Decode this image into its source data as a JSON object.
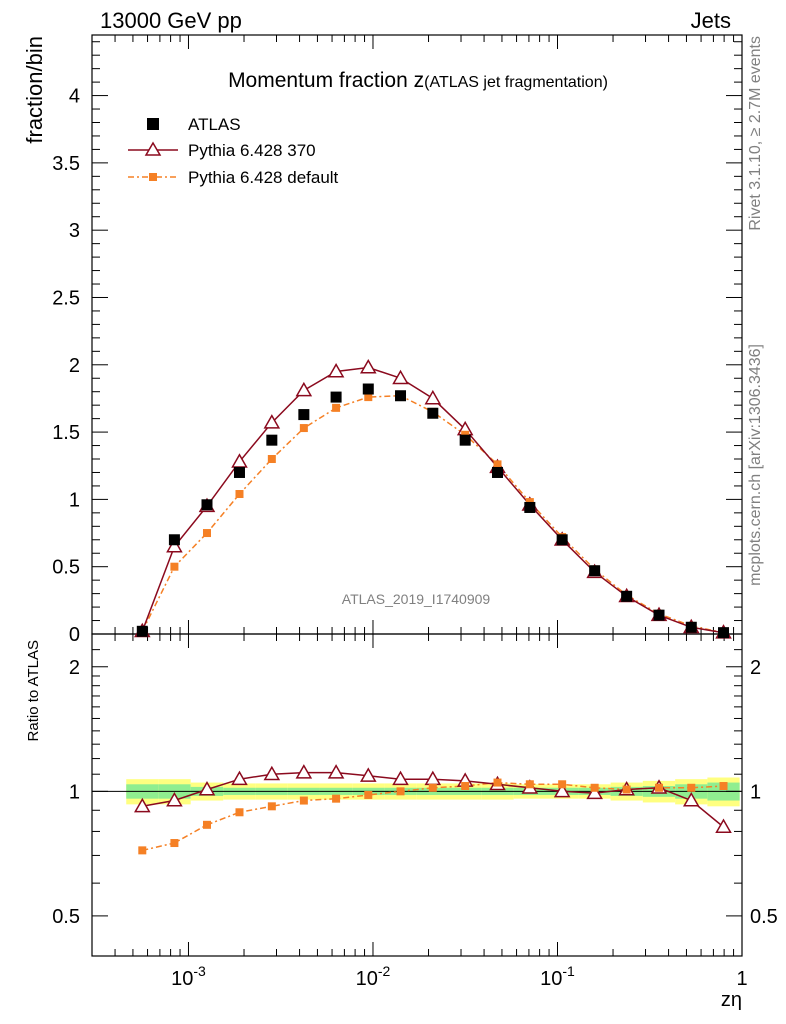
{
  "header": {
    "energy_label": "13000 GeV pp",
    "category_label": "Jets"
  },
  "side": {
    "rivet_label": "Rivet 3.1.10, ≥ 2.7M events",
    "source_label": "mcplots.cern.ch [arXiv:1306.3436]"
  },
  "chart_data": {
    "type": "line",
    "title": "Momentum fraction z",
    "title_suffix": "(ATLAS jet fragmentation)",
    "watermark": "ATLAS_2019_I1740909",
    "xlabel": "zη",
    "ylabel": "fraction/bin",
    "ratio_ylabel": "Ratio to ATLAS",
    "xscale": "log",
    "xlim": [
      0.0003,
      1
    ],
    "ylim": [
      0,
      4.45
    ],
    "ratio_ylim": [
      0.4,
      2.4
    ],
    "legend_position": "top-left",
    "x_tick_labels": [
      "10^-3",
      "10^-2",
      "10^-1",
      "1"
    ],
    "y_tick_labels": [
      "0",
      "0.5",
      "1",
      "1.5",
      "2",
      "2.5",
      "3",
      "3.5",
      "4"
    ],
    "ratio_tick_labels": [
      "0.5",
      "1",
      "2"
    ],
    "x": [
      0.000562,
      0.000839,
      0.00126,
      0.00189,
      0.00283,
      0.00422,
      0.00631,
      0.00943,
      0.0141,
      0.0211,
      0.0316,
      0.0473,
      0.0708,
      0.106,
      0.159,
      0.237,
      0.355,
      0.531,
      0.794
    ],
    "series": [
      {
        "name": "ATLAS",
        "style": "data",
        "color": "#000000",
        "values": [
          0.02,
          0.7,
          0.96,
          1.2,
          1.44,
          1.63,
          1.76,
          1.82,
          1.77,
          1.64,
          1.44,
          1.2,
          0.94,
          0.7,
          0.47,
          0.28,
          0.14,
          0.05,
          0.01
        ]
      },
      {
        "name": "Pythia 6.428 370",
        "style": "triangle-line",
        "color": "#8b0a1e",
        "values": [
          0.02,
          0.65,
          0.95,
          1.28,
          1.57,
          1.81,
          1.95,
          1.98,
          1.9,
          1.75,
          1.52,
          1.24,
          0.96,
          0.7,
          0.46,
          0.28,
          0.14,
          0.05,
          0.01
        ],
        "ratio": [
          0.92,
          0.95,
          1.01,
          1.07,
          1.1,
          1.11,
          1.11,
          1.09,
          1.07,
          1.07,
          1.06,
          1.04,
          1.02,
          1.0,
          0.99,
          1.01,
          1.02,
          0.95,
          0.82
        ]
      },
      {
        "name": "Pythia 6.428 default",
        "style": "square-dashdot",
        "color": "#f58025",
        "values": [
          0.02,
          0.5,
          0.75,
          1.04,
          1.3,
          1.53,
          1.68,
          1.76,
          1.77,
          1.65,
          1.48,
          1.26,
          0.98,
          0.72,
          0.48,
          0.29,
          0.15,
          0.06,
          0.01
        ],
        "ratio": [
          0.72,
          0.75,
          0.83,
          0.89,
          0.92,
          0.95,
          0.96,
          0.98,
          1.0,
          1.02,
          1.03,
          1.05,
          1.04,
          1.04,
          1.02,
          1.01,
          1.02,
          1.02,
          1.03
        ]
      }
    ]
  }
}
